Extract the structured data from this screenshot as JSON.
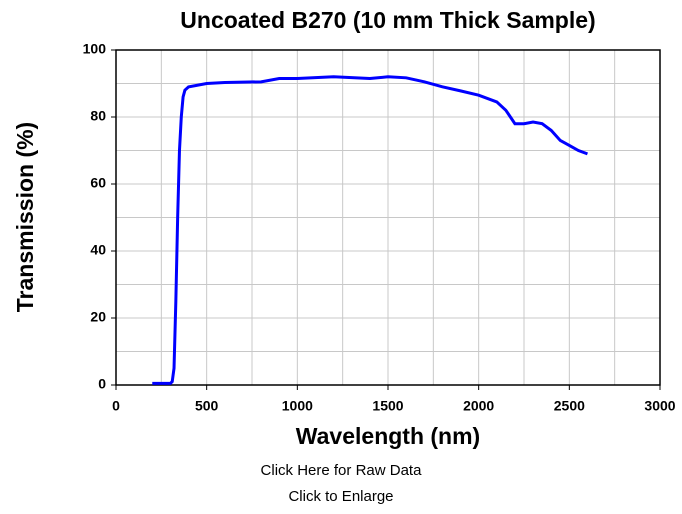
{
  "chart_data": {
    "type": "line",
    "title": "Uncoated B270 (10 mm Thick Sample)",
    "x_label": "Wavelength (nm)",
    "y_label": "Transmission (%)",
    "xlim": [
      0,
      3000
    ],
    "ylim": [
      0,
      100
    ],
    "xticks": [
      0,
      500,
      1000,
      1500,
      2000,
      2500,
      3000
    ],
    "yticks": [
      0,
      20,
      40,
      60,
      80,
      100
    ],
    "xminorticks": [
      250,
      750,
      1250,
      1750,
      2250,
      2750
    ],
    "yminorticks": [
      10,
      30,
      50,
      70,
      90
    ],
    "grid": true,
    "series": [
      {
        "name": "Transmission",
        "color": "#0000ff",
        "x": [
          200,
          300,
          310,
          320,
          330,
          340,
          350,
          360,
          370,
          380,
          400,
          500,
          600,
          800,
          900,
          1000,
          1200,
          1400,
          1500,
          1600,
          1700,
          1800,
          1900,
          2000,
          2100,
          2150,
          2200,
          2250,
          2300,
          2350,
          2400,
          2450,
          2500,
          2550,
          2600
        ],
        "values": [
          0.5,
          0.5,
          1,
          5,
          25,
          50,
          70,
          80,
          86,
          88,
          89,
          90,
          90.3,
          90.5,
          91.5,
          91.5,
          92,
          91.5,
          92,
          91.7,
          90.5,
          89,
          87.8,
          86.5,
          84.5,
          82,
          78,
          78,
          78.5,
          78,
          76,
          73,
          71.5,
          70,
          69
        ]
      }
    ]
  },
  "links": [
    "Click Here for Raw Data",
    "Click to Enlarge"
  ]
}
